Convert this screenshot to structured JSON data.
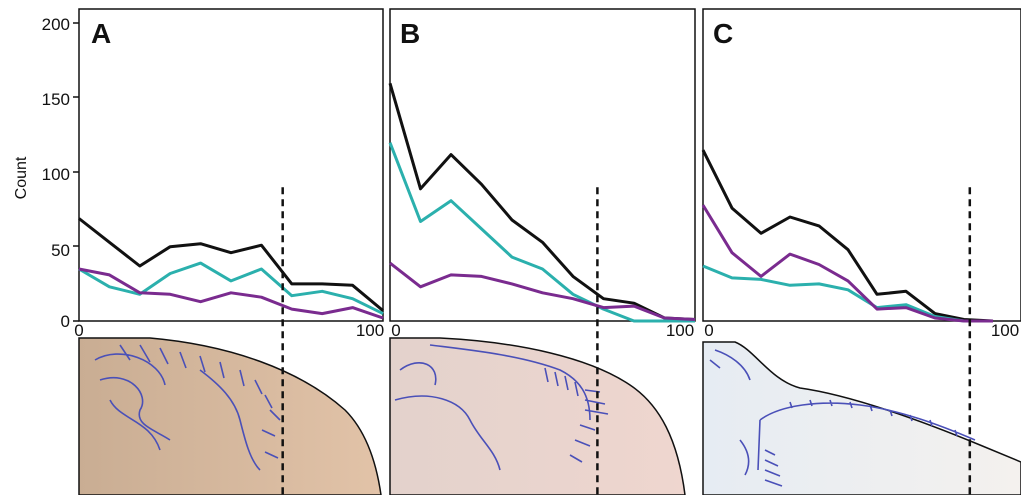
{
  "figure": {
    "ylabel": "Count",
    "y_ticks": [
      "0",
      "50",
      "100",
      "150",
      "200"
    ],
    "x_tick_start": "0",
    "x_tick_end": "100"
  },
  "chart_data": [
    {
      "type": "line",
      "panel_label": "A",
      "x": [
        0,
        10,
        20,
        30,
        40,
        50,
        60,
        70,
        80,
        90,
        100
      ],
      "xlim": [
        0,
        100
      ],
      "ylim": [
        0,
        210
      ],
      "y_ticks": [
        0,
        50,
        100,
        150,
        200
      ],
      "x_ticks": [
        0,
        100
      ],
      "ylabel": "Count",
      "vline_x": 67,
      "series": [
        {
          "color": "#111111",
          "values": [
            69,
            53,
            37,
            50,
            52,
            46,
            51,
            25,
            25,
            24,
            7
          ]
        },
        {
          "color": "#2bb0ad",
          "values": [
            35,
            23,
            18,
            32,
            39,
            27,
            35,
            17,
            20,
            15,
            5
          ]
        },
        {
          "color": "#7a2b8f",
          "values": [
            35,
            31,
            19,
            18,
            13,
            19,
            16,
            8,
            5,
            9,
            2
          ]
        }
      ]
    },
    {
      "type": "line",
      "panel_label": "B",
      "x": [
        0,
        10,
        20,
        30,
        40,
        50,
        60,
        70,
        80,
        90,
        100
      ],
      "xlim": [
        0,
        100
      ],
      "ylim": [
        0,
        210
      ],
      "y_ticks": [
        0,
        50,
        100,
        150,
        200
      ],
      "x_ticks": [
        0,
        100
      ],
      "vline_x": 68,
      "series": [
        {
          "color": "#111111",
          "values": [
            160,
            89,
            112,
            92,
            68,
            53,
            30,
            15,
            12,
            2,
            1
          ]
        },
        {
          "color": "#2bb0ad",
          "values": [
            120,
            67,
            81,
            62,
            43,
            35,
            18,
            8,
            0,
            0,
            0
          ]
        },
        {
          "color": "#7a2b8f",
          "values": [
            39,
            23,
            31,
            30,
            25,
            19,
            15,
            9,
            10,
            2,
            1
          ]
        }
      ]
    },
    {
      "type": "line",
      "panel_label": "C",
      "x": [
        0,
        10,
        20,
        30,
        40,
        50,
        60,
        70,
        80,
        90,
        100
      ],
      "xlim": [
        0,
        100
      ],
      "ylim": [
        0,
        210
      ],
      "y_ticks": [
        0,
        50,
        100,
        150,
        200
      ],
      "x_ticks": [
        0,
        100
      ],
      "vline_x": 92,
      "series": [
        {
          "color": "#111111",
          "values": [
            115,
            76,
            59,
            70,
            64,
            48,
            18,
            20,
            5,
            1,
            0
          ]
        },
        {
          "color": "#2bb0ad",
          "values": [
            37,
            29,
            28,
            24,
            25,
            21,
            9,
            11,
            3,
            0,
            0
          ]
        },
        {
          "color": "#7a2b8f",
          "values": [
            78,
            46,
            30,
            45,
            38,
            27,
            8,
            9,
            2,
            0,
            0
          ]
        }
      ]
    }
  ]
}
